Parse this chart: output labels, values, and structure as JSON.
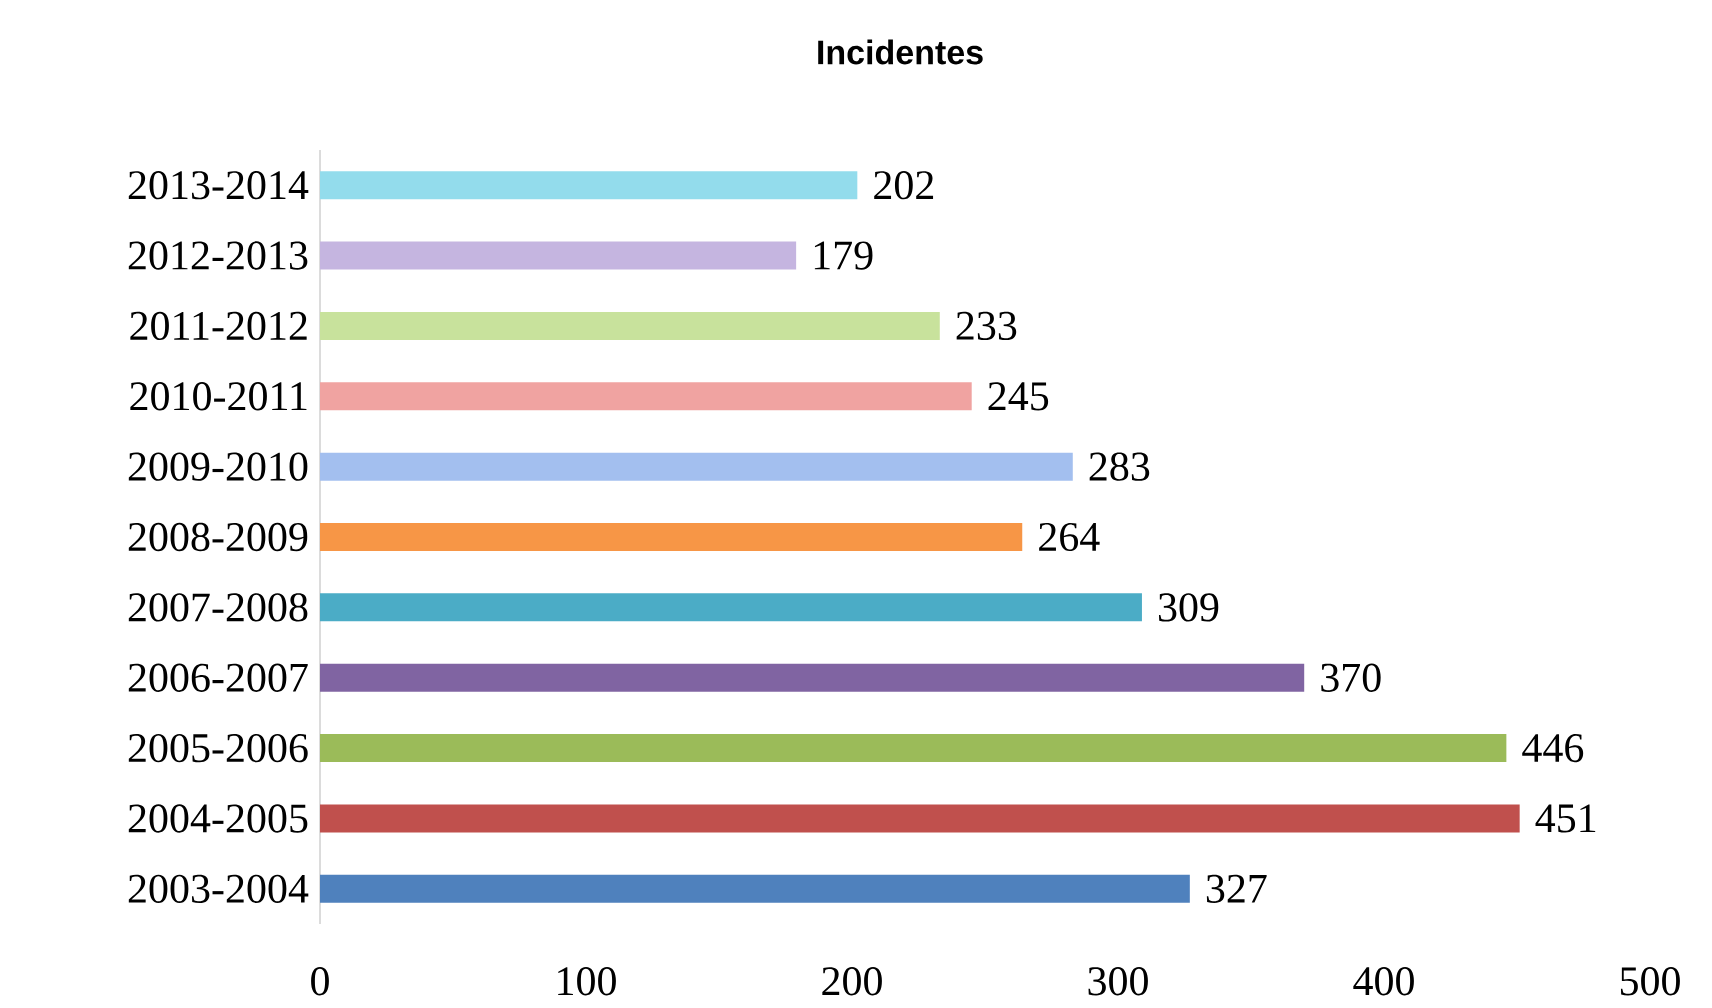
{
  "chart_data": {
    "type": "bar",
    "orientation": "horizontal",
    "title": "Incidentes",
    "categories": [
      "2013-2014",
      "2012-2013",
      "2011-2012",
      "2010-2011",
      "2009-2010",
      "2008-2009",
      "2007-2008",
      "2006-2007",
      "2005-2006",
      "2004-2005",
      "2003-2004"
    ],
    "values": [
      202,
      179,
      233,
      245,
      283,
      264,
      309,
      370,
      446,
      451,
      327
    ],
    "colors": [
      "#93dcec",
      "#c5b5e0",
      "#c8e29c",
      "#f0a3a1",
      "#a3bfef",
      "#f79646",
      "#4bacc6",
      "#8064a2",
      "#9bbb59",
      "#c0504d",
      "#4f81bd"
    ],
    "xlim": [
      0,
      500
    ],
    "xticks": [
      0,
      100,
      200,
      300,
      400,
      500
    ],
    "data_labels": true
  }
}
